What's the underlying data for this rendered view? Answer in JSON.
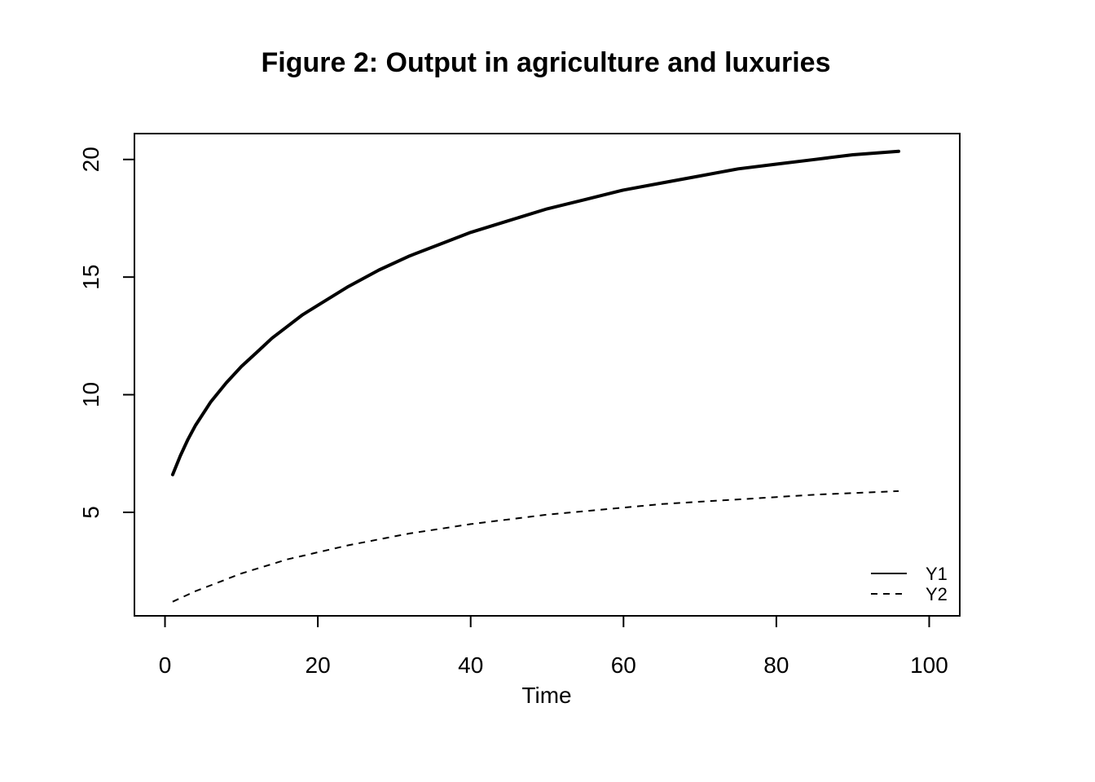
{
  "chart_data": {
    "type": "line",
    "title": "Figure 2: Output in agriculture and luxuries",
    "xlabel": "Time",
    "ylabel": "",
    "xlim": [
      -4,
      104
    ],
    "ylim": [
      0.6,
      21.1
    ],
    "xticks": [
      0,
      20,
      40,
      60,
      80,
      100
    ],
    "yticks": [
      5,
      10,
      15,
      20
    ],
    "grid": false,
    "legend": "bottom-right",
    "x": [
      1,
      2,
      3,
      4,
      6,
      8,
      10,
      12,
      14,
      16,
      18,
      20,
      24,
      28,
      32,
      36,
      40,
      45,
      50,
      55,
      60,
      65,
      70,
      75,
      80,
      85,
      90,
      96
    ],
    "series": [
      {
        "name": "Y1",
        "line_style": "solid",
        "color": "#000000",
        "values": [
          6.6,
          7.4,
          8.1,
          8.7,
          9.7,
          10.5,
          11.2,
          11.8,
          12.4,
          12.9,
          13.4,
          13.8,
          14.6,
          15.3,
          15.9,
          16.4,
          16.9,
          17.4,
          17.9,
          18.3,
          18.7,
          19.0,
          19.3,
          19.6,
          19.8,
          20.0,
          20.2,
          20.35
        ]
      },
      {
        "name": "Y2",
        "line_style": "dashed",
        "color": "#000000",
        "values": [
          1.2,
          1.35,
          1.5,
          1.65,
          1.9,
          2.15,
          2.4,
          2.6,
          2.8,
          3.0,
          3.15,
          3.3,
          3.6,
          3.85,
          4.1,
          4.3,
          4.5,
          4.7,
          4.9,
          5.05,
          5.2,
          5.35,
          5.45,
          5.55,
          5.65,
          5.75,
          5.82,
          5.9
        ]
      }
    ]
  }
}
